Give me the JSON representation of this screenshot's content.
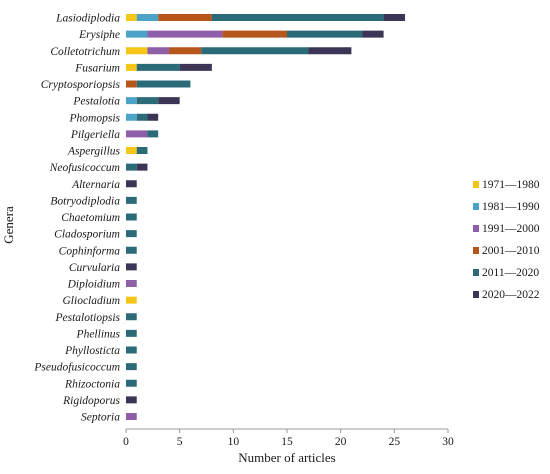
{
  "chart_data": {
    "type": "bar",
    "orientation": "horizontal",
    "stacked": true,
    "xlabel": "Number  of articles",
    "ylabel": "Genera",
    "xlim": [
      0,
      30
    ],
    "xticks": [
      "0",
      "5",
      "10",
      "15",
      "20",
      "25",
      "30"
    ],
    "grid": false,
    "legend_position": "right",
    "categories": [
      "Lasiodiplodia",
      "Erysiphe",
      "Colletotrichum",
      "Fusarium",
      "Cryptosporiopsis",
      "Pestalotia",
      "Phomopsis",
      "Pilgeriella",
      "Aspergillus",
      "Neofusicoccum",
      "Alternaria",
      "Botryodiplodia",
      "Chaetomium",
      "Cladosporium",
      "Cophinforma",
      "Curvularia",
      "Diploidium",
      "Gliocladium",
      "Pestalotiopsis",
      "Phellinus",
      "Phyllosticta",
      "Pseudofusicoccum",
      "Rhizoctonia",
      "Rigidoporus",
      "Septoria"
    ],
    "series": [
      {
        "name": "1971—1980",
        "color": "#f5c518",
        "values": [
          1,
          0,
          2,
          1,
          0,
          0,
          0,
          0,
          1,
          0,
          0,
          0,
          0,
          0,
          0,
          0,
          0,
          1,
          0,
          0,
          0,
          0,
          0,
          0,
          0
        ]
      },
      {
        "name": "1981—1990",
        "color": "#4ba3c7",
        "values": [
          2,
          2,
          0,
          0,
          0,
          1,
          1,
          0,
          0,
          0,
          0,
          0,
          0,
          0,
          0,
          0,
          0,
          0,
          0,
          0,
          0,
          0,
          0,
          0,
          0
        ]
      },
      {
        "name": "1991—2000",
        "color": "#8e5fa8",
        "values": [
          0,
          7,
          2,
          0,
          0,
          0,
          0,
          2,
          0,
          0,
          0,
          0,
          0,
          0,
          0,
          0,
          1,
          0,
          0,
          0,
          0,
          0,
          0,
          0,
          1
        ]
      },
      {
        "name": "2001—2010",
        "color": "#b5561b",
        "values": [
          5,
          6,
          3,
          0,
          1,
          0,
          0,
          0,
          0,
          0,
          0,
          0,
          0,
          0,
          0,
          0,
          0,
          0,
          0,
          0,
          0,
          0,
          0,
          0,
          0
        ]
      },
      {
        "name": "2011—2020",
        "color": "#2b6b78",
        "values": [
          16,
          7,
          10,
          4,
          5,
          2,
          1,
          1,
          1,
          1,
          0,
          1,
          1,
          1,
          1,
          0,
          0,
          0,
          1,
          1,
          1,
          1,
          1,
          0,
          0
        ]
      },
      {
        "name": "2020—2022",
        "color": "#3d3556",
        "values": [
          2,
          2,
          4,
          3,
          0,
          2,
          1,
          0,
          0,
          1,
          1,
          0,
          0,
          0,
          0,
          1,
          0,
          0,
          0,
          0,
          0,
          0,
          0,
          1,
          0
        ]
      }
    ]
  }
}
